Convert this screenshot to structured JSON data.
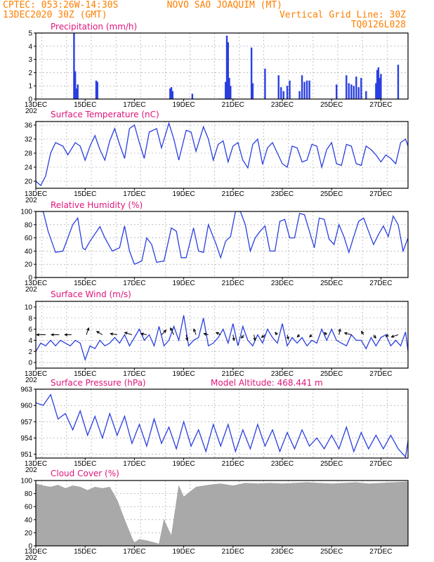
{
  "header": {
    "line1_left": "CPTEC:   053:26W-14:30S",
    "line1_right": "NOVO SAO JOAQUIM (MT)",
    "line2_left": "13DEC2020 30Z (GMT)",
    "line2_right": "Vertical Grid Line: 30Z",
    "line3_right": "TQ0126L028"
  },
  "colors": {
    "header": "#ff7f00",
    "panel_title": "#e0157a",
    "series": "#2a3fe0",
    "cloud": "#a9a9a9",
    "arrows": "#000000"
  },
  "x_axis": {
    "start_day": 13,
    "end_day": 28.1,
    "ticks": [
      13,
      15,
      17,
      19,
      21,
      23,
      25,
      27
    ],
    "tick_labels": [
      "13DEC",
      "15DEC",
      "17DEC",
      "19DEC",
      "21DEC",
      "23DEC",
      "25DEC",
      "27DEC"
    ],
    "year_fragment": "202"
  },
  "chart_data": [
    {
      "type": "bar",
      "title": "Precipitation (mm/h)",
      "ylim": [
        0,
        5
      ],
      "yticks": [
        "0",
        "1",
        "2",
        "3",
        "4",
        "5"
      ],
      "x_unit": "day of December 2020",
      "x": [
        14.55,
        14.6,
        14.65,
        14.7,
        15.45,
        15.5,
        18.45,
        18.5,
        18.55,
        19.35,
        20.7,
        20.75,
        20.8,
        20.85,
        20.9,
        21.75,
        21.8,
        22.3,
        22.85,
        22.95,
        23.05,
        23.2,
        23.3,
        23.7,
        23.8,
        23.9,
        24.0,
        24.1,
        25.2,
        25.6,
        25.7,
        25.8,
        25.9,
        26.0,
        26.1,
        26.2,
        26.4,
        26.8,
        26.85,
        26.9,
        26.95,
        27.0,
        27.7
      ],
      "values": [
        5.0,
        2.1,
        0.8,
        1.1,
        1.4,
        1.3,
        0.8,
        0.9,
        0.6,
        0.4,
        1.3,
        4.8,
        4.3,
        1.6,
        1.0,
        3.9,
        1.2,
        2.3,
        1.8,
        0.9,
        0.6,
        1.0,
        1.4,
        0.6,
        1.8,
        1.3,
        1.4,
        1.4,
        1.1,
        1.8,
        1.2,
        1.1,
        1.0,
        1.7,
        0.9,
        1.6,
        0.6,
        1.2,
        2.2,
        2.4,
        1.6,
        1.9,
        2.6
      ]
    },
    {
      "type": "line",
      "title": "Surface Temperature (nC)",
      "ylim": [
        18,
        37
      ],
      "yticks": [
        "20",
        "24",
        "28",
        "32",
        "36"
      ],
      "series": [
        {
          "x": [
            13.0,
            13.2,
            13.4,
            13.6,
            13.8,
            14.1,
            14.3,
            14.6,
            14.8,
            15.0,
            15.2,
            15.4,
            15.6,
            15.8,
            16.0,
            16.2,
            16.4,
            16.6,
            16.8,
            17.0,
            17.2,
            17.4,
            17.6,
            17.9,
            18.1,
            18.4,
            18.6,
            18.8,
            19.1,
            19.3,
            19.5,
            19.8,
            20.0,
            20.2,
            20.4,
            20.6,
            20.8,
            21.0,
            21.2,
            21.4,
            21.6,
            21.8,
            22.0,
            22.2,
            22.4,
            22.6,
            22.8,
            23.0,
            23.2,
            23.4,
            23.6,
            23.8,
            24.0,
            24.2,
            24.4,
            24.6,
            24.8,
            25.0,
            25.2,
            25.4,
            25.6,
            25.8,
            26.0,
            26.2,
            26.4,
            26.6,
            26.8,
            27.0,
            27.2,
            27.4,
            27.6,
            27.8,
            28.0,
            28.1
          ],
          "values": [
            20.0,
            18.8,
            21.5,
            28.0,
            31.0,
            30.0,
            27.5,
            31.0,
            30.0,
            26.0,
            30.0,
            33.0,
            29.0,
            26.0,
            31.5,
            35.0,
            30.5,
            26.5,
            35.0,
            36.0,
            31.0,
            26.5,
            34.0,
            35.0,
            29.5,
            36.5,
            32.0,
            26.0,
            34.5,
            34.0,
            28.5,
            35.5,
            32.0,
            26.0,
            30.5,
            31.5,
            25.5,
            30.0,
            31.0,
            26.0,
            23.8,
            30.5,
            32.0,
            24.8,
            29.5,
            31.0,
            28.0,
            25.0,
            24.0,
            30.0,
            29.5,
            25.5,
            26.0,
            30.5,
            30.0,
            24.0,
            29.0,
            31.0,
            25.0,
            24.5,
            30.5,
            30.0,
            25.0,
            24.5,
            30.0,
            29.0,
            27.5,
            25.5,
            27.5,
            26.5,
            25.0,
            31.0,
            32.0,
            30.0
          ]
        }
      ]
    },
    {
      "type": "line",
      "title": "Relative Humidity (%)",
      "ylim": [
        0,
        100
      ],
      "yticks": [
        "0",
        "20",
        "40",
        "60",
        "80",
        "100"
      ],
      "series": [
        {
          "x": [
            13.0,
            13.3,
            13.5,
            13.8,
            14.1,
            14.5,
            14.7,
            14.9,
            15.0,
            15.2,
            15.6,
            15.8,
            16.1,
            16.4,
            16.6,
            16.8,
            17.0,
            17.3,
            17.5,
            17.7,
            17.9,
            18.2,
            18.5,
            18.7,
            18.9,
            19.1,
            19.4,
            19.6,
            19.8,
            20.0,
            20.3,
            20.5,
            20.7,
            20.9,
            21.1,
            21.3,
            21.5,
            21.7,
            21.9,
            22.1,
            22.3,
            22.5,
            22.7,
            22.9,
            23.1,
            23.3,
            23.5,
            23.7,
            23.9,
            24.1,
            24.3,
            24.5,
            24.7,
            24.9,
            25.1,
            25.3,
            25.5,
            25.7,
            25.9,
            26.1,
            26.3,
            26.5,
            26.7,
            26.9,
            27.1,
            27.3,
            27.5,
            27.7,
            27.9,
            28.1
          ],
          "values": [
            100.0,
            100.0,
            70.0,
            38.0,
            40.0,
            80.0,
            90.0,
            45.0,
            42.0,
            55.0,
            77.0,
            60.0,
            40.0,
            45.0,
            78.0,
            40.0,
            20.0,
            25.0,
            60.0,
            50.0,
            23.0,
            25.0,
            75.0,
            70.0,
            30.0,
            30.0,
            75.0,
            40.0,
            38.0,
            80.0,
            52.0,
            30.0,
            55.0,
            62.0,
            100.0,
            100.0,
            80.0,
            40.0,
            60.0,
            70.0,
            78.0,
            40.0,
            40.0,
            85.0,
            88.0,
            60.0,
            60.0,
            97.0,
            95.0,
            70.0,
            45.0,
            90.0,
            88.0,
            58.0,
            50.0,
            80.0,
            62.0,
            38.0,
            62.0,
            85.0,
            90.0,
            70.0,
            50.0,
            65.0,
            78.0,
            62.0,
            93.0,
            80.0,
            40.0,
            60.0
          ]
        }
      ]
    },
    {
      "type": "line",
      "title": "Surface Wind (m/s)",
      "ylim": [
        -1,
        11
      ],
      "yticks": [
        "0",
        "2",
        "4",
        "6",
        "8",
        "10"
      ],
      "series": [
        {
          "x": [
            13.0,
            13.2,
            13.4,
            13.6,
            13.8,
            14.0,
            14.2,
            14.4,
            14.6,
            14.8,
            15.0,
            15.2,
            15.4,
            15.6,
            15.8,
            16.0,
            16.2,
            16.4,
            16.6,
            16.8,
            17.0,
            17.2,
            17.4,
            17.6,
            17.8,
            18.0,
            18.2,
            18.4,
            18.6,
            18.8,
            19.0,
            19.2,
            19.4,
            19.6,
            19.8,
            20.0,
            20.2,
            20.4,
            20.6,
            20.8,
            21.0,
            21.2,
            21.4,
            21.6,
            21.8,
            22.0,
            22.2,
            22.4,
            22.6,
            22.8,
            23.0,
            23.2,
            23.4,
            23.6,
            23.8,
            24.0,
            24.2,
            24.4,
            24.6,
            24.8,
            25.0,
            25.2,
            25.4,
            25.6,
            25.8,
            26.0,
            26.2,
            26.4,
            26.6,
            26.8,
            27.0,
            27.2,
            27.4,
            27.6,
            27.8,
            28.0,
            28.1
          ],
          "values": [
            2.0,
            3.5,
            3.0,
            4.0,
            3.0,
            4.0,
            3.5,
            3.0,
            4.0,
            3.5,
            0.5,
            3.0,
            2.5,
            4.0,
            3.0,
            3.5,
            4.5,
            3.5,
            5.0,
            3.0,
            4.5,
            6.0,
            4.0,
            5.0,
            3.0,
            6.5,
            3.0,
            4.0,
            6.5,
            4.0,
            8.5,
            3.0,
            4.0,
            4.5,
            8.0,
            3.0,
            3.5,
            4.5,
            6.0,
            3.5,
            7.0,
            3.0,
            6.5,
            4.0,
            3.0,
            5.0,
            3.5,
            6.0,
            4.5,
            3.5,
            7.0,
            3.0,
            4.5,
            3.5,
            4.5,
            3.0,
            4.0,
            3.5,
            6.0,
            4.0,
            6.0,
            4.0,
            3.5,
            3.0,
            5.0,
            4.0,
            4.0,
            2.5,
            4.5,
            3.0,
            4.5,
            5.0,
            3.0,
            4.0,
            3.0,
            5.5,
            2.0
          ]
        }
      ],
      "arrows": {
        "x": [
          13.4,
          13.95,
          14.45,
          15.05,
          15.7,
          16.3,
          16.9,
          17.5,
          18.1,
          18.6,
          19.1,
          19.5,
          20.0,
          20.5,
          21.0,
          21.45,
          21.85,
          22.3,
          22.8,
          23.2,
          23.7,
          24.2,
          24.8,
          25.3,
          25.8,
          26.3,
          26.7,
          27.3,
          27.7
        ],
        "u": [
          -4.0,
          -3.5,
          -3.0,
          1.0,
          -2.5,
          -3.0,
          -3.2,
          -2.5,
          2.0,
          -1.5,
          0.5,
          -1.0,
          -2.0,
          -2.0,
          0.5,
          -1.2,
          0.5,
          -1.5,
          -1.0,
          0.5,
          -1.0,
          -1.0,
          -1.0,
          0.5,
          -3.0,
          -1.0,
          1.0,
          -1.0,
          -3.0
        ],
        "v": [
          0.0,
          0.0,
          0.0,
          3.0,
          1.5,
          0.5,
          1.0,
          0.5,
          2.0,
          3.0,
          -2.5,
          2.5,
          0.5,
          1.0,
          -2.5,
          -1.5,
          -2.5,
          -1.2,
          1.0,
          -2.0,
          -1.0,
          -1.0,
          1.0,
          2.5,
          0.8,
          1.5,
          -1.5,
          -0.8,
          -1.0
        ]
      }
    },
    {
      "type": "line",
      "title": "Surface Pressure (hPa)",
      "annotation": "Model Altitude:  468.441  m",
      "ylim": [
        950.3,
        963
      ],
      "yticks": [
        "951",
        "954",
        "957",
        "960",
        "963"
      ],
      "series": [
        {
          "x": [
            13.0,
            13.3,
            13.6,
            13.9,
            14.2,
            14.5,
            14.8,
            15.1,
            15.4,
            15.7,
            16.0,
            16.3,
            16.6,
            16.9,
            17.2,
            17.5,
            17.8,
            18.1,
            18.4,
            18.7,
            19.0,
            19.3,
            19.6,
            19.9,
            20.2,
            20.5,
            20.8,
            21.1,
            21.4,
            21.7,
            22.0,
            22.3,
            22.6,
            22.9,
            23.2,
            23.5,
            23.8,
            24.1,
            24.4,
            24.7,
            25.0,
            25.3,
            25.6,
            25.9,
            26.2,
            26.5,
            26.8,
            27.1,
            27.4,
            27.7,
            28.0,
            28.1
          ],
          "values": [
            960.5,
            960.0,
            962.0,
            957.5,
            958.5,
            955.5,
            959.0,
            954.5,
            958.0,
            954.0,
            958.5,
            954.5,
            958.0,
            953.0,
            956.5,
            952.5,
            957.5,
            953.0,
            956.0,
            952.0,
            957.0,
            952.5,
            955.5,
            951.5,
            956.5,
            952.5,
            956.5,
            951.5,
            955.5,
            952.0,
            956.5,
            952.5,
            955.5,
            951.5,
            955.0,
            952.0,
            955.5,
            952.5,
            954.0,
            952.0,
            954.5,
            952.0,
            956.0,
            951.5,
            955.0,
            952.0,
            954.5,
            952.0,
            954.5,
            952.0,
            950.5,
            953.5
          ]
        }
      ]
    },
    {
      "type": "area",
      "title": "Cloud Cover (%)",
      "ylim": [
        0,
        100
      ],
      "yticks": [
        "0",
        "20",
        "40",
        "60",
        "80",
        "100"
      ],
      "x": [
        13.0,
        13.3,
        13.6,
        13.9,
        14.2,
        14.5,
        14.8,
        15.1,
        15.4,
        15.7,
        16.0,
        16.3,
        16.6,
        16.9,
        17.0,
        17.2,
        17.5,
        17.8,
        18.0,
        18.2,
        18.5,
        18.8,
        19.0,
        19.5,
        20.0,
        20.5,
        21.0,
        21.5,
        22.0,
        22.5,
        23.0,
        23.5,
        24.0,
        24.5,
        25.0,
        25.5,
        26.0,
        26.5,
        27.0,
        27.5,
        28.0,
        28.1
      ],
      "values": [
        95.0,
        92.0,
        90.0,
        93.0,
        88.0,
        92.0,
        90.0,
        85.0,
        90.0,
        88.0,
        90.0,
        70.0,
        40.0,
        12.0,
        5.0,
        10.0,
        8.0,
        5.0,
        3.0,
        40.0,
        15.0,
        92.0,
        75.0,
        90.0,
        93.0,
        95.0,
        92.0,
        96.0,
        95.0,
        96.0,
        95.0,
        96.0,
        97.0,
        96.0,
        95.0,
        96.0,
        97.0,
        95.0,
        96.0,
        97.0,
        98.0,
        98.0
      ]
    }
  ]
}
